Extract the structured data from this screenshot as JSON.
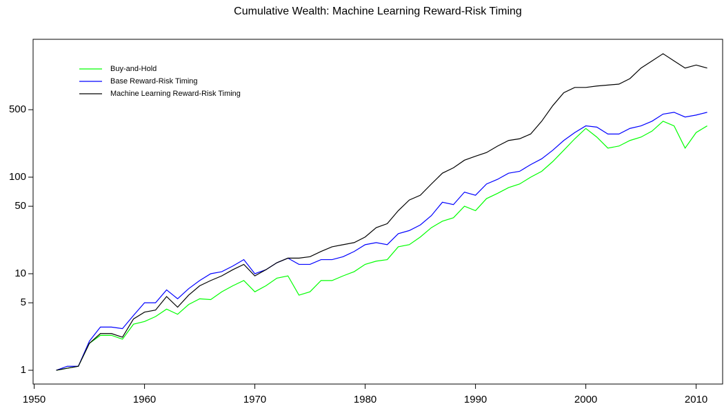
{
  "chart_data": {
    "type": "line",
    "title": "Cumulative Wealth: Machine Learning Reward-Risk Timing",
    "log_scale": "y",
    "legend": "top-left",
    "x": [
      1952,
      1953,
      1954,
      1955,
      1956,
      1957,
      1958,
      1959,
      1960,
      1961,
      1962,
      1963,
      1964,
      1965,
      1966,
      1967,
      1968,
      1969,
      1970,
      1971,
      1972,
      1973,
      1974,
      1975,
      1976,
      1977,
      1978,
      1979,
      1980,
      1981,
      1982,
      1983,
      1984,
      1985,
      1986,
      1987,
      1988,
      1989,
      1990,
      1991,
      1992,
      1993,
      1994,
      1995,
      1996,
      1997,
      1998,
      1999,
      2000,
      2001,
      2002,
      2003,
      2004,
      2005,
      2006,
      2007,
      2008,
      2009,
      2010,
      2011
    ],
    "series": [
      {
        "name": "Buy-and-Hold",
        "color": "#00ff00",
        "values": [
          1,
          1.05,
          1.1,
          1.9,
          2.3,
          2.3,
          2.1,
          3,
          3.2,
          3.6,
          4.3,
          3.8,
          4.8,
          5.5,
          5.4,
          6.5,
          7.5,
          8.5,
          6.5,
          7.5,
          9,
          9.5,
          6,
          6.5,
          8.5,
          8.5,
          9.5,
          10.5,
          12.5,
          13.5,
          14,
          19,
          20,
          24,
          30,
          35,
          38,
          50,
          45,
          60,
          68,
          78,
          85,
          100,
          115,
          145,
          190,
          250,
          320,
          260,
          200,
          210,
          240,
          260,
          300,
          380,
          340,
          200,
          290,
          340
        ]
      },
      {
        "name": "Base Reward-Risk Timing",
        "color": "#0000ff",
        "values": [
          1,
          1.1,
          1.1,
          2,
          2.8,
          2.8,
          2.7,
          3.7,
          5,
          5,
          6.8,
          5.5,
          7,
          8.5,
          10,
          10.5,
          12,
          14,
          10,
          11,
          13,
          14.5,
          12.5,
          12.5,
          14,
          14,
          15,
          17,
          20,
          21,
          20,
          26,
          28,
          32,
          40,
          55,
          52,
          70,
          65,
          85,
          95,
          110,
          115,
          135,
          155,
          190,
          240,
          290,
          340,
          330,
          280,
          280,
          320,
          340,
          380,
          450,
          470,
          420,
          440,
          470
        ]
      },
      {
        "name": "Machine Learning Reward-Risk Timing",
        "color": "#000000",
        "values": [
          1,
          1.05,
          1.1,
          1.9,
          2.4,
          2.4,
          2.2,
          3.4,
          4,
          4.2,
          5.8,
          4.5,
          6,
          7.5,
          8.5,
          9.5,
          11,
          12.5,
          9.5,
          11,
          13,
          14.5,
          14.5,
          15,
          17,
          19,
          20,
          21,
          24,
          30,
          33,
          45,
          58,
          65,
          85,
          110,
          125,
          150,
          165,
          180,
          210,
          240,
          250,
          280,
          380,
          550,
          750,
          850,
          850,
          880,
          900,
          920,
          1050,
          1350,
          1600,
          1900,
          1600,
          1350,
          1450,
          1350
        ]
      }
    ],
    "xlim": [
      1949.9,
      2012.4
    ],
    "xticks": [
      1950,
      1960,
      1970,
      1980,
      1990,
      2000,
      2010
    ],
    "ylim": [
      0.72,
      2680
    ],
    "yticks": [
      1,
      5,
      10,
      50,
      100,
      500
    ]
  }
}
